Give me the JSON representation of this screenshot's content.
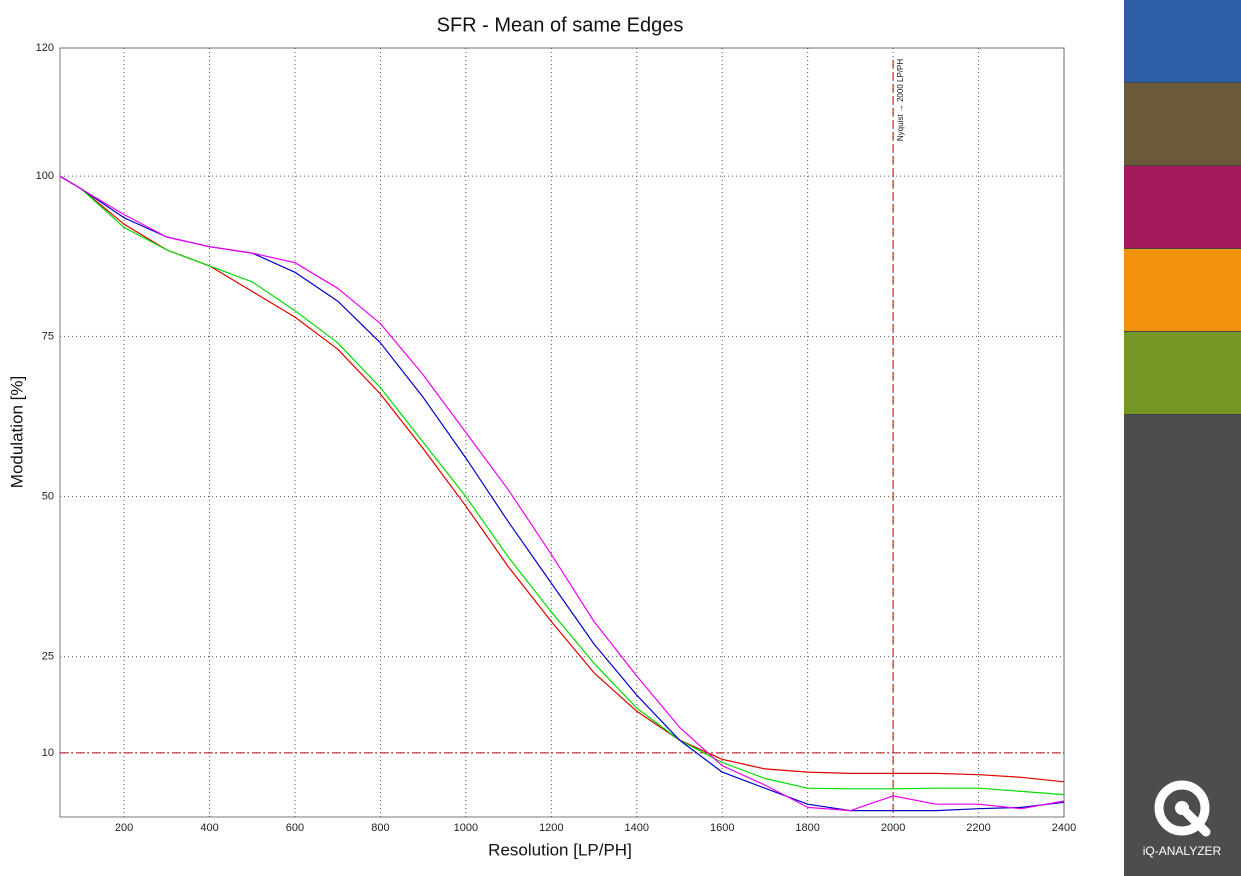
{
  "chart_data": {
    "type": "line",
    "title": "SFR - Mean of same Edges",
    "x_label": "Resolution [LP/PH]",
    "y_label": "Modulation [%]",
    "x": [
      50,
      100,
      200,
      300,
      400,
      500,
      600,
      700,
      800,
      900,
      1000,
      1100,
      1200,
      1300,
      1400,
      1500,
      1600,
      1700,
      1800,
      1900,
      2000,
      2100,
      2200,
      2300,
      2400
    ],
    "series": [
      {
        "color": "#e00000",
        "values": [
          100,
          98,
          92.5,
          88.5,
          86,
          82,
          78,
          73,
          66,
          57.5,
          48.5,
          39,
          30.5,
          22.5,
          16.5,
          12,
          9,
          7.5,
          7,
          6.8,
          6.8,
          6.8,
          6.6,
          6.2,
          5.5
        ]
      },
      {
        "color": "#00dd00",
        "values": [
          100,
          98,
          92,
          88.5,
          86,
          83.5,
          79,
          74,
          67,
          58.5,
          50,
          40.5,
          32,
          24,
          17,
          12,
          8.5,
          6,
          4.5,
          4.4,
          4.4,
          4.5,
          4.5,
          4,
          3.5
        ]
      },
      {
        "color": "#0000c8",
        "values": [
          100,
          98,
          93.5,
          90.5,
          89,
          88,
          85,
          80.5,
          74,
          65.5,
          56,
          46,
          36.5,
          27,
          19,
          12,
          7,
          4.5,
          2,
          1,
          1,
          1,
          1.3,
          1.5,
          2.3
        ]
      },
      {
        "color": "#ee00ee",
        "values": [
          100,
          98,
          94,
          90.5,
          89,
          88,
          86.5,
          82.5,
          77,
          69,
          60,
          51,
          41,
          30.5,
          22,
          14,
          8,
          5,
          1.5,
          1,
          3.3,
          2,
          2,
          1.3,
          2.5
        ]
      }
    ],
    "xlim": [
      50,
      2400
    ],
    "ylim": [
      0,
      120
    ],
    "xticks": [
      200,
      400,
      600,
      800,
      1000,
      1200,
      1400,
      1600,
      1800,
      2000,
      2200,
      2400
    ],
    "yticks": [
      10,
      25,
      50,
      75,
      100,
      120
    ],
    "grid": true,
    "threshold_y": 10,
    "nyquist_x": 2000,
    "nyquist_label": "Nyquist → 2000 LP/PH",
    "reference_color": "#cc0000"
  },
  "branding": {
    "logo": "iQ-ANALYZER"
  }
}
